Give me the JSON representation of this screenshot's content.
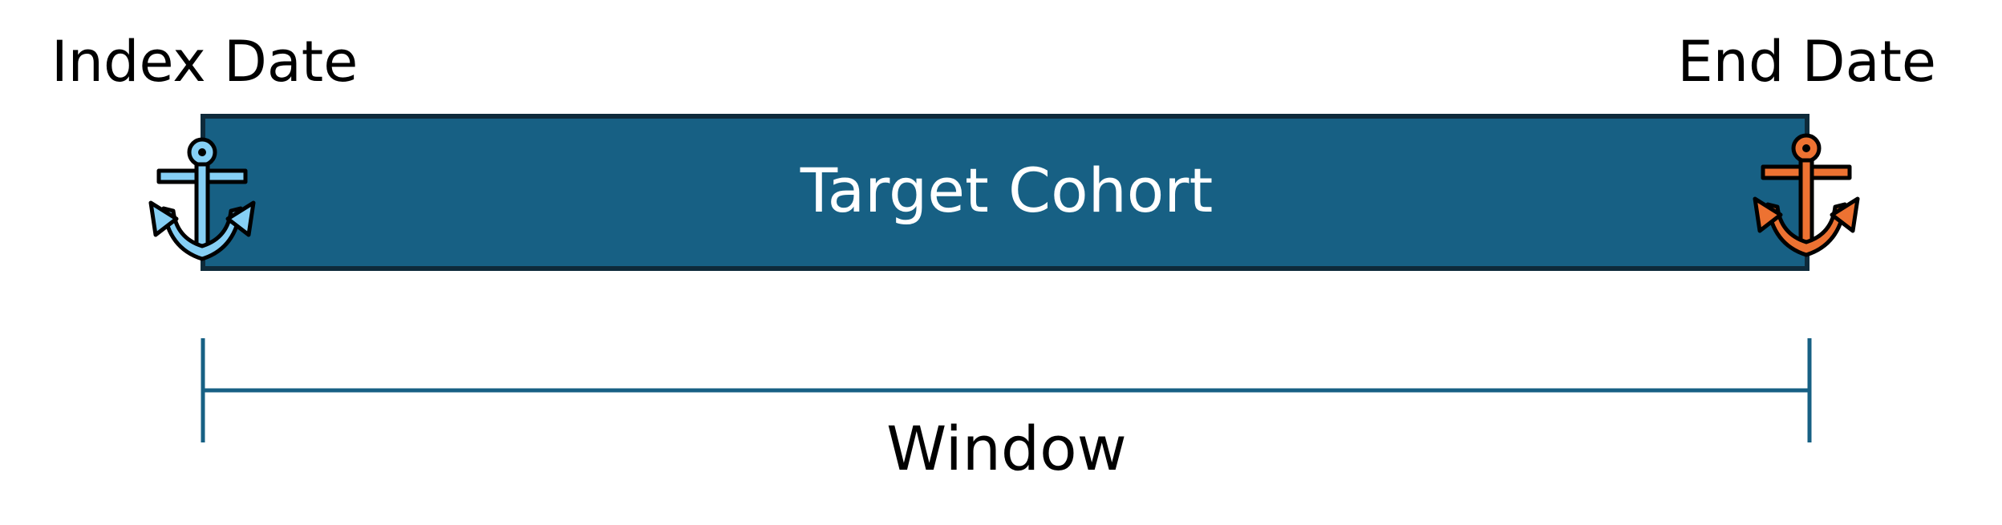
{
  "labels": {
    "index_date": "Index Date",
    "end_date": "End Date",
    "target_cohort": "Target Cohort",
    "window": "Window"
  },
  "icons": {
    "start": "anchor-icon",
    "end": "anchor-icon"
  },
  "colors": {
    "cohort_fill": "#176084",
    "cohort_border": "#0e2a3a",
    "window_line": "#176084",
    "start_anchor": "#86cff5",
    "end_anchor": "#ed7232"
  }
}
